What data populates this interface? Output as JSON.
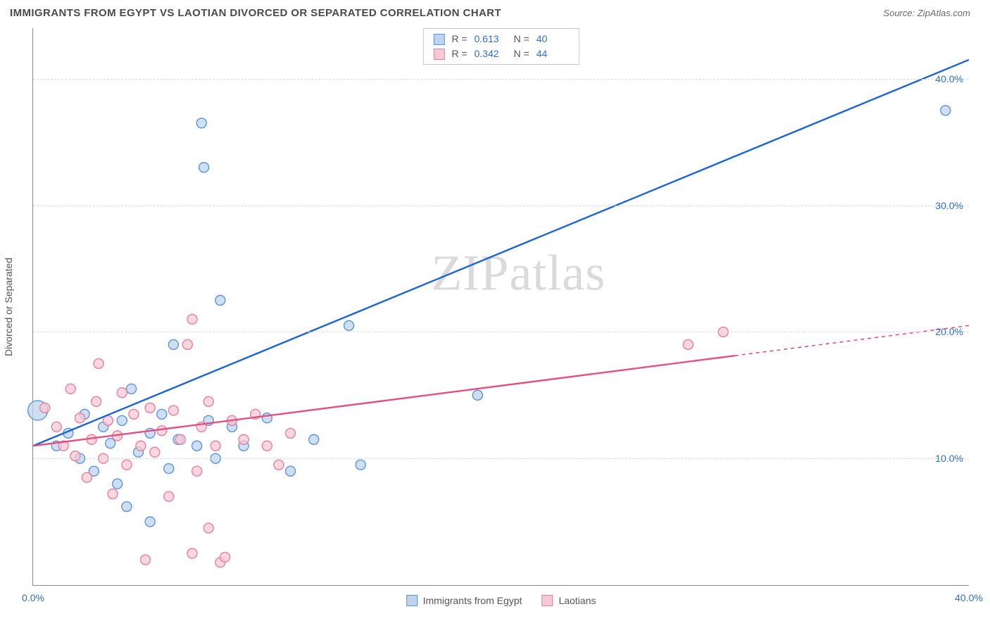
{
  "title": "IMMIGRANTS FROM EGYPT VS LAOTIAN DIVORCED OR SEPARATED CORRELATION CHART",
  "source_label": "Source:",
  "source_value": "ZipAtlas.com",
  "watermark": "ZIPatlas",
  "yaxis_label": "Divorced or Separated",
  "chart": {
    "type": "scatter",
    "background_color": "#ffffff",
    "grid_color": "#d9d9d9",
    "axis_color": "#8a8a8a",
    "xlim": [
      0,
      40
    ],
    "ylim": [
      0,
      44
    ],
    "x_ticks": [
      {
        "v": 0,
        "label": "0.0%"
      },
      {
        "v": 40,
        "label": "40.0%"
      }
    ],
    "y_ticks": [
      {
        "v": 10,
        "label": "10.0%"
      },
      {
        "v": 20,
        "label": "20.0%"
      },
      {
        "v": 30,
        "label": "30.0%"
      },
      {
        "v": 40,
        "label": "40.0%"
      }
    ],
    "series": [
      {
        "name": "Immigrants from Egypt",
        "fill": "#bdd4f0",
        "stroke": "#5b94db",
        "line_color": "#1b63d6",
        "R": "0.613",
        "N": "40",
        "reg_line": {
          "x1": 0,
          "y1": 11,
          "x2": 40,
          "y2": 41.5,
          "solid_end": 40
        },
        "points": [
          {
            "x": 0.2,
            "y": 13.8,
            "r": 14
          },
          {
            "x": 1.0,
            "y": 11.0,
            "r": 7
          },
          {
            "x": 1.5,
            "y": 12.0,
            "r": 7
          },
          {
            "x": 2.0,
            "y": 10.0,
            "r": 7
          },
          {
            "x": 2.2,
            "y": 13.5,
            "r": 7
          },
          {
            "x": 2.6,
            "y": 9.0,
            "r": 7
          },
          {
            "x": 3.0,
            "y": 12.5,
            "r": 7
          },
          {
            "x": 3.3,
            "y": 11.2,
            "r": 7
          },
          {
            "x": 3.6,
            "y": 8.0,
            "r": 7
          },
          {
            "x": 3.8,
            "y": 13.0,
            "r": 7
          },
          {
            "x": 4.0,
            "y": 6.2,
            "r": 7
          },
          {
            "x": 4.2,
            "y": 15.5,
            "r": 7
          },
          {
            "x": 4.5,
            "y": 10.5,
            "r": 7
          },
          {
            "x": 5.0,
            "y": 12.0,
            "r": 7
          },
          {
            "x": 5.0,
            "y": 5.0,
            "r": 7
          },
          {
            "x": 5.5,
            "y": 13.5,
            "r": 7
          },
          {
            "x": 5.8,
            "y": 9.2,
            "r": 7
          },
          {
            "x": 6.0,
            "y": 19.0,
            "r": 7
          },
          {
            "x": 6.2,
            "y": 11.5,
            "r": 7
          },
          {
            "x": 7.2,
            "y": 36.5,
            "r": 7
          },
          {
            "x": 7.0,
            "y": 11.0,
            "r": 7
          },
          {
            "x": 7.3,
            "y": 33.0,
            "r": 7
          },
          {
            "x": 7.5,
            "y": 13.0,
            "r": 7
          },
          {
            "x": 7.8,
            "y": 10.0,
            "r": 7
          },
          {
            "x": 8.0,
            "y": 22.5,
            "r": 7
          },
          {
            "x": 8.5,
            "y": 12.5,
            "r": 7
          },
          {
            "x": 9.0,
            "y": 11.0,
            "r": 7
          },
          {
            "x": 10.0,
            "y": 13.2,
            "r": 7
          },
          {
            "x": 11.0,
            "y": 9.0,
            "r": 7
          },
          {
            "x": 12.0,
            "y": 11.5,
            "r": 7
          },
          {
            "x": 13.5,
            "y": 20.5,
            "r": 7
          },
          {
            "x": 14.0,
            "y": 9.5,
            "r": 7
          },
          {
            "x": 19.0,
            "y": 15.0,
            "r": 7
          },
          {
            "x": 39.0,
            "y": 37.5,
            "r": 7
          }
        ]
      },
      {
        "name": "Laotians",
        "fill": "#f6c9d4",
        "stroke": "#e97ea0",
        "line_color": "#e35080",
        "R": "0.342",
        "N": "44",
        "reg_line": {
          "x1": 0,
          "y1": 11,
          "x2": 40,
          "y2": 20.5,
          "solid_end": 30
        },
        "points": [
          {
            "x": 0.5,
            "y": 14.0,
            "r": 7
          },
          {
            "x": 1.0,
            "y": 12.5,
            "r": 7
          },
          {
            "x": 1.3,
            "y": 11.0,
            "r": 7
          },
          {
            "x": 1.6,
            "y": 15.5,
            "r": 7
          },
          {
            "x": 1.8,
            "y": 10.2,
            "r": 7
          },
          {
            "x": 2.0,
            "y": 13.2,
            "r": 7
          },
          {
            "x": 2.3,
            "y": 8.5,
            "r": 7
          },
          {
            "x": 2.5,
            "y": 11.5,
            "r": 7
          },
          {
            "x": 2.7,
            "y": 14.5,
            "r": 7
          },
          {
            "x": 2.8,
            "y": 17.5,
            "r": 7
          },
          {
            "x": 3.0,
            "y": 10.0,
            "r": 7
          },
          {
            "x": 3.2,
            "y": 13.0,
            "r": 7
          },
          {
            "x": 3.4,
            "y": 7.2,
            "r": 7
          },
          {
            "x": 3.6,
            "y": 11.8,
            "r": 7
          },
          {
            "x": 3.8,
            "y": 15.2,
            "r": 7
          },
          {
            "x": 4.0,
            "y": 9.5,
            "r": 7
          },
          {
            "x": 4.3,
            "y": 13.5,
            "r": 7
          },
          {
            "x": 4.6,
            "y": 11.0,
            "r": 7
          },
          {
            "x": 4.8,
            "y": 2.0,
            "r": 7
          },
          {
            "x": 5.0,
            "y": 14.0,
            "r": 7
          },
          {
            "x": 5.2,
            "y": 10.5,
            "r": 7
          },
          {
            "x": 5.5,
            "y": 12.2,
            "r": 7
          },
          {
            "x": 5.8,
            "y": 7.0,
            "r": 7
          },
          {
            "x": 6.0,
            "y": 13.8,
            "r": 7
          },
          {
            "x": 6.3,
            "y": 11.5,
            "r": 7
          },
          {
            "x": 6.6,
            "y": 19.0,
            "r": 7
          },
          {
            "x": 6.8,
            "y": 2.5,
            "r": 7
          },
          {
            "x": 6.8,
            "y": 21.0,
            "r": 7
          },
          {
            "x": 7.0,
            "y": 9.0,
            "r": 7
          },
          {
            "x": 7.2,
            "y": 12.5,
            "r": 7
          },
          {
            "x": 7.5,
            "y": 14.5,
            "r": 7
          },
          {
            "x": 7.5,
            "y": 4.5,
            "r": 7
          },
          {
            "x": 7.8,
            "y": 11.0,
            "r": 7
          },
          {
            "x": 8.0,
            "y": 1.8,
            "r": 7
          },
          {
            "x": 8.2,
            "y": 2.2,
            "r": 7
          },
          {
            "x": 8.5,
            "y": 13.0,
            "r": 7
          },
          {
            "x": 9.0,
            "y": 11.5,
            "r": 7
          },
          {
            "x": 9.5,
            "y": 13.5,
            "r": 7
          },
          {
            "x": 10.0,
            "y": 11.0,
            "r": 7
          },
          {
            "x": 10.5,
            "y": 9.5,
            "r": 7
          },
          {
            "x": 11.0,
            "y": 12.0,
            "r": 7
          },
          {
            "x": 28.0,
            "y": 19.0,
            "r": 7
          },
          {
            "x": 29.5,
            "y": 20.0,
            "r": 7
          }
        ]
      }
    ]
  },
  "legend_bottom": [
    {
      "label": "Immigrants from Egypt",
      "fill": "#bdd4f0",
      "stroke": "#5b94db"
    },
    {
      "label": "Laotians",
      "fill": "#f6c9d4",
      "stroke": "#e97ea0"
    }
  ]
}
